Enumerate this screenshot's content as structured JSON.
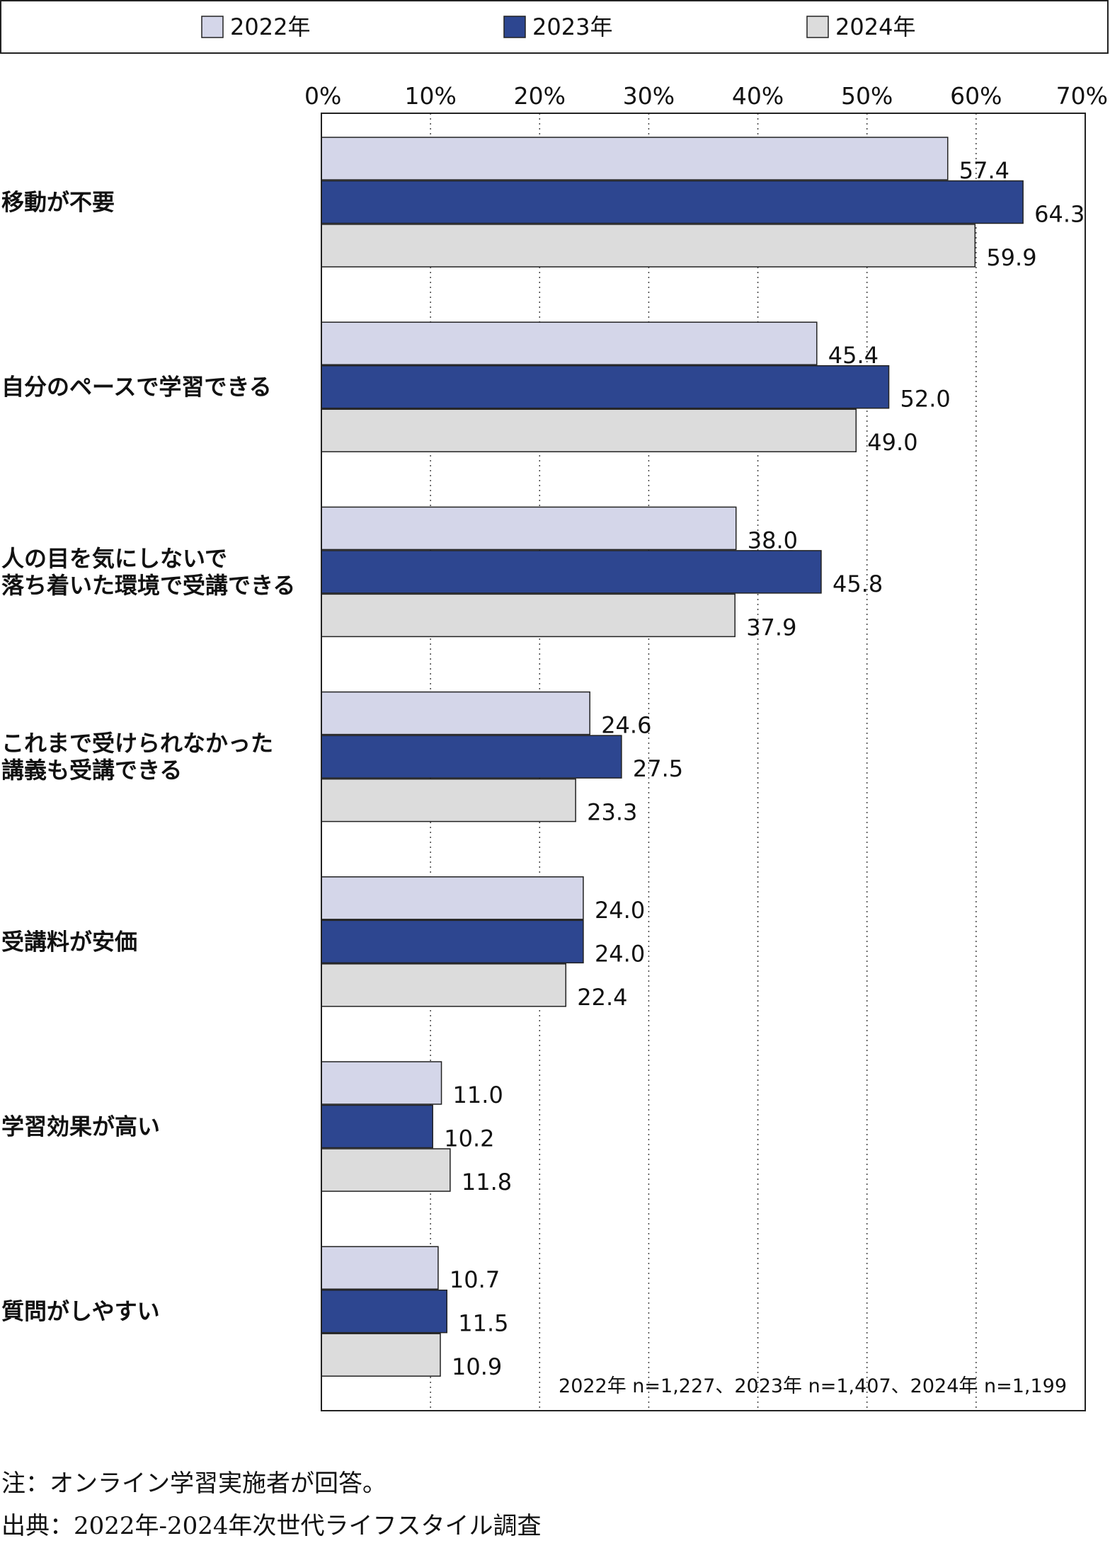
{
  "chart_data": {
    "type": "bar",
    "orientation": "horizontal",
    "xlim": [
      0,
      70
    ],
    "ticks": [
      "0%",
      "10%",
      "20%",
      "30%",
      "40%",
      "50%",
      "60%",
      "70%"
    ],
    "grid": true,
    "legend_position": "top",
    "categories": [
      [
        "移動が不要"
      ],
      [
        "自分のペースで学習できる"
      ],
      [
        "人の目を気にしないで",
        "落ち着いた環境で受講できる"
      ],
      [
        "これまで受けられなかった",
        "講義も受講できる"
      ],
      [
        "受講料が安価"
      ],
      [
        "学習効果が高い"
      ],
      [
        "質問がしやすい"
      ]
    ],
    "series": [
      {
        "name": "2022年",
        "color": "#d4d6e9",
        "values": [
          57.4,
          45.4,
          38.0,
          24.6,
          24.0,
          11.0,
          10.7
        ],
        "labels": [
          "57.4",
          "45.4",
          "38.0",
          "24.6",
          "24.0",
          "11.0",
          "10.7"
        ]
      },
      {
        "name": "2023年",
        "color": "#2d4690",
        "values": [
          64.3,
          52.0,
          45.8,
          27.5,
          24.0,
          10.2,
          11.5
        ],
        "labels": [
          "64.3",
          "52.0",
          "45.8",
          "27.5",
          "24.0",
          "10.2",
          "11.5"
        ]
      },
      {
        "name": "2024年",
        "color": "#dcdcdc",
        "values": [
          59.9,
          49.0,
          37.9,
          23.3,
          22.4,
          11.8,
          10.9
        ],
        "labels": [
          "59.9",
          "49.0",
          "37.9",
          "23.3",
          "22.4",
          "11.8",
          "10.9"
        ]
      }
    ],
    "sample_note": "2022年 n=1,227、2023年 n=1,407、2024年 n=1,199"
  },
  "footer": {
    "note": "注：オンライン学習実施者が回答。",
    "source": "出典：2022年-2024年次世代ライフスタイル調査"
  }
}
